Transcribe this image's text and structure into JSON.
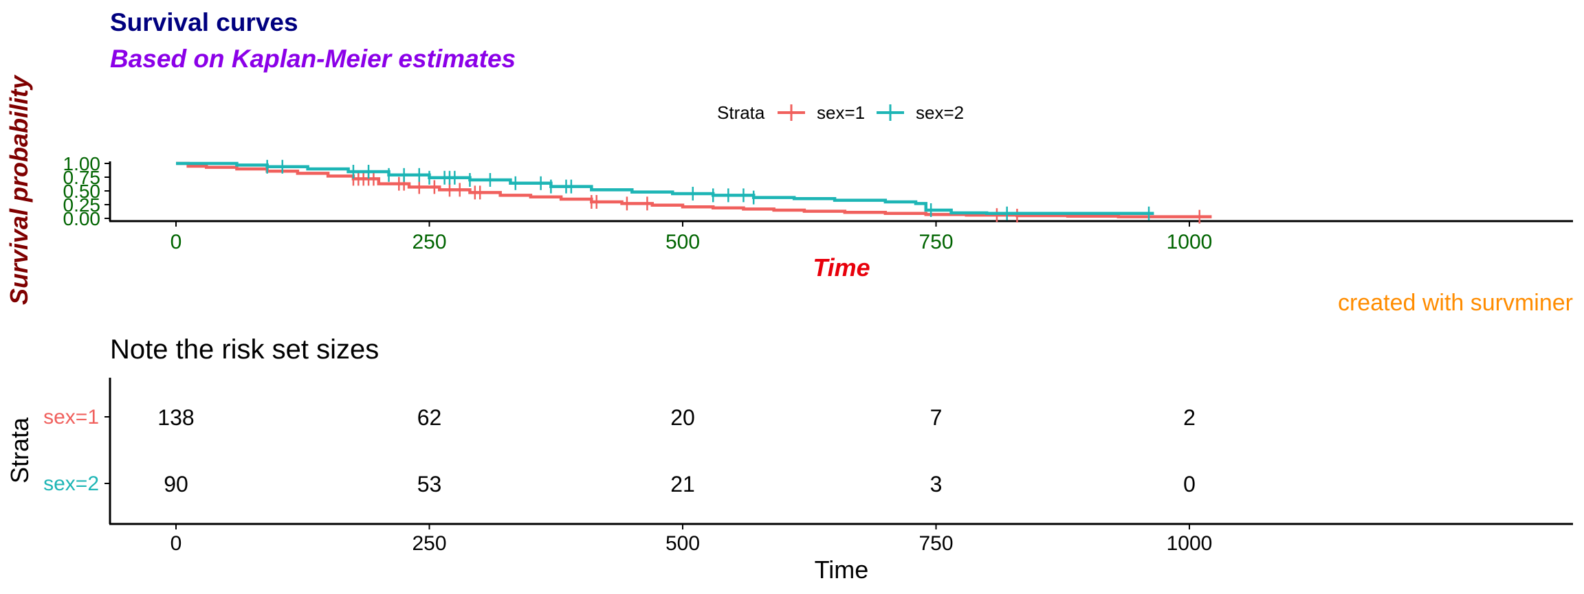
{
  "colors": {
    "title": "#00007F",
    "subtitle": "#8B00E8",
    "ylabel": "#7F0000",
    "xlabel": "#E8000B",
    "ticks": "#006400",
    "caption": "#FF8C00",
    "sex1": "#F0605D",
    "sex2": "#1DB5B5"
  },
  "chart_data": [
    {
      "type": "line",
      "title": "Survival curves",
      "subtitle": "Based on Kaplan-Meier estimates",
      "xlabel": "Time",
      "ylabel": "Survival probability",
      "caption": "created with survminer",
      "xlim": [
        0,
        1022
      ],
      "ylim": [
        0,
        1
      ],
      "xticks": [
        "0",
        "250",
        "500",
        "750",
        "1000"
      ],
      "yticks": [
        "0.00",
        "0.25",
        "0.50",
        "0.75",
        "1.00"
      ],
      "legend": {
        "title": "Strata",
        "position": "top"
      },
      "grid": false,
      "series": [
        {
          "name": "sex=1",
          "color": "#F0605D",
          "x": [
            0,
            12,
            30,
            60,
            90,
            120,
            150,
            175,
            200,
            230,
            260,
            290,
            320,
            350,
            380,
            410,
            440,
            470,
            500,
            530,
            560,
            590,
            620,
            660,
            700,
            740,
            780,
            830,
            880,
            930,
            1022
          ],
          "y": [
            1.0,
            0.95,
            0.93,
            0.9,
            0.86,
            0.82,
            0.77,
            0.72,
            0.63,
            0.57,
            0.52,
            0.47,
            0.42,
            0.39,
            0.35,
            0.3,
            0.27,
            0.24,
            0.21,
            0.19,
            0.17,
            0.15,
            0.13,
            0.11,
            0.09,
            0.07,
            0.06,
            0.05,
            0.04,
            0.03,
            0.03
          ],
          "censor_x": [
            175,
            180,
            185,
            190,
            195,
            220,
            225,
            240,
            255,
            270,
            280,
            295,
            300,
            410,
            415,
            445,
            465,
            810,
            830,
            1010
          ]
        },
        {
          "name": "sex=2",
          "color": "#1DB5B5",
          "x": [
            0,
            60,
            90,
            130,
            170,
            210,
            250,
            290,
            330,
            370,
            410,
            450,
            490,
            530,
            570,
            610,
            650,
            700,
            730,
            740,
            765,
            800,
            965
          ],
          "y": [
            1.0,
            0.97,
            0.94,
            0.9,
            0.85,
            0.79,
            0.74,
            0.7,
            0.64,
            0.58,
            0.52,
            0.48,
            0.45,
            0.42,
            0.38,
            0.36,
            0.33,
            0.3,
            0.27,
            0.15,
            0.1,
            0.09,
            0.09
          ],
          "censor_x": [
            90,
            105,
            175,
            190,
            210,
            225,
            240,
            250,
            265,
            270,
            275,
            290,
            310,
            335,
            360,
            370,
            385,
            390,
            510,
            530,
            545,
            560,
            570,
            745,
            820,
            960
          ]
        }
      ]
    },
    {
      "type": "table",
      "title": "Note the risk set sizes",
      "xlabel": "Time",
      "ylabel": "Strata",
      "xticks": [
        "0",
        "250",
        "500",
        "750",
        "1000"
      ],
      "times": [
        0,
        250,
        500,
        750,
        1000
      ],
      "rows": [
        {
          "strata": "sex=1",
          "color": "#F0605D",
          "values": [
            "138",
            "62",
            "20",
            "7",
            "2"
          ]
        },
        {
          "strata": "sex=2",
          "color": "#1DB5B5",
          "values": [
            "90",
            "53",
            "21",
            "3",
            "0"
          ]
        }
      ]
    }
  ]
}
